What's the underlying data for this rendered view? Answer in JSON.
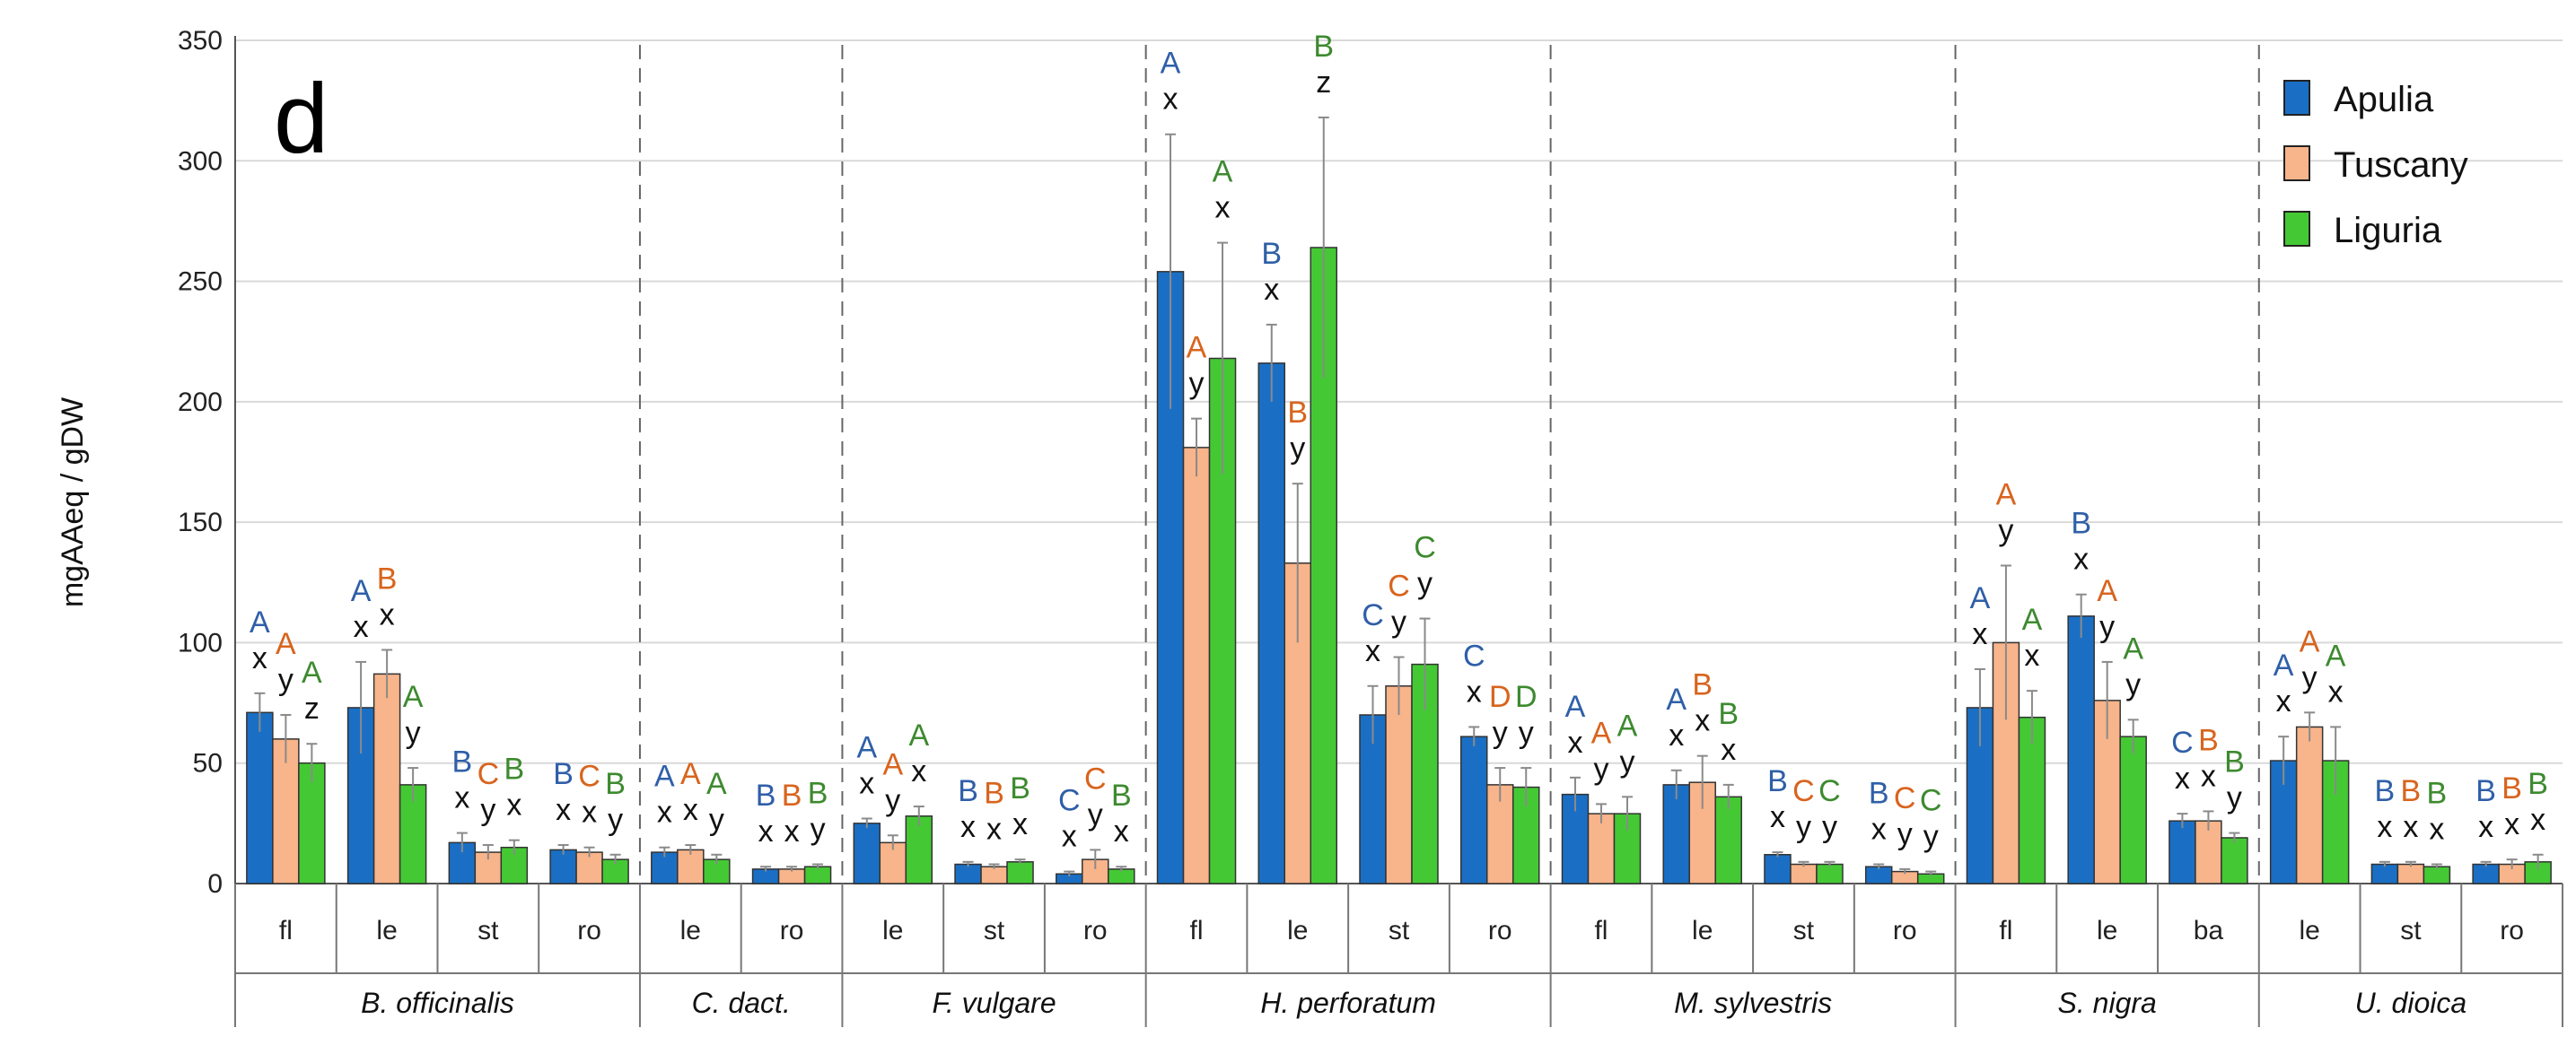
{
  "chart_data": {
    "type": "bar",
    "panel_letter": "d",
    "ylabel": "mgAAeq / gDW",
    "xlabel": "",
    "ylim": [
      0,
      350
    ],
    "yticks": [
      "0",
      "50",
      "100",
      "150",
      "200",
      "250",
      "300",
      "350"
    ],
    "grid": true,
    "legend_position": "top-right",
    "series": [
      {
        "name": "Apulia",
        "color": "#1a6fc4",
        "sig_color": "#2f5fa8"
      },
      {
        "name": "Tuscany",
        "color": "#f8b48a",
        "sig_color": "#d8641e"
      },
      {
        "name": "Liguria",
        "color": "#44c934",
        "sig_color": "#3d8a2f"
      }
    ],
    "groups": [
      {
        "species": "B. officinalis",
        "parts": [
          {
            "part": "fl",
            "bars": [
              {
                "v": 71,
                "err": 8,
                "L": "A",
                "l": "x"
              },
              {
                "v": 60,
                "err": 10,
                "L": "A",
                "l": "y"
              },
              {
                "v": 50,
                "err": 8,
                "L": "A",
                "l": "z"
              }
            ]
          },
          {
            "part": "le",
            "bars": [
              {
                "v": 73,
                "err": 19,
                "L": "A",
                "l": "x"
              },
              {
                "v": 87,
                "err": 10,
                "L": "B",
                "l": "x"
              },
              {
                "v": 41,
                "err": 7,
                "L": "A",
                "l": "y"
              }
            ]
          },
          {
            "part": "st",
            "bars": [
              {
                "v": 17,
                "err": 4,
                "L": "B",
                "l": "x"
              },
              {
                "v": 13,
                "err": 3,
                "L": "C",
                "l": "y"
              },
              {
                "v": 15,
                "err": 3,
                "L": "B",
                "l": "x"
              }
            ]
          },
          {
            "part": "ro",
            "bars": [
              {
                "v": 14,
                "err": 2,
                "L": "B",
                "l": "x"
              },
              {
                "v": 13,
                "err": 2,
                "L": "C",
                "l": "x"
              },
              {
                "v": 10,
                "err": 2,
                "L": "B",
                "l": "y"
              }
            ]
          }
        ]
      },
      {
        "species": "C. dact.",
        "parts": [
          {
            "part": "le",
            "bars": [
              {
                "v": 13,
                "err": 2,
                "L": "A",
                "l": "x"
              },
              {
                "v": 14,
                "err": 2,
                "L": "A",
                "l": "x"
              },
              {
                "v": 10,
                "err": 2,
                "L": "A",
                "l": "y"
              }
            ]
          },
          {
            "part": "ro",
            "bars": [
              {
                "v": 6,
                "err": 1,
                "L": "B",
                "l": "x"
              },
              {
                "v": 6,
                "err": 1,
                "L": "B",
                "l": "x"
              },
              {
                "v": 7,
                "err": 1,
                "L": "B",
                "l": "y"
              }
            ]
          }
        ]
      },
      {
        "species": "F. vulgare",
        "parts": [
          {
            "part": "le",
            "bars": [
              {
                "v": 25,
                "err": 2,
                "L": "A",
                "l": "x"
              },
              {
                "v": 17,
                "err": 3,
                "L": "A",
                "l": "y"
              },
              {
                "v": 28,
                "err": 4,
                "L": "A",
                "l": "x"
              }
            ]
          },
          {
            "part": "st",
            "bars": [
              {
                "v": 8,
                "err": 1,
                "L": "B",
                "l": "x"
              },
              {
                "v": 7,
                "err": 1,
                "L": "B",
                "l": "x"
              },
              {
                "v": 9,
                "err": 1,
                "L": "B",
                "l": "x"
              }
            ]
          },
          {
            "part": "ro",
            "bars": [
              {
                "v": 4,
                "err": 1,
                "L": "C",
                "l": "x"
              },
              {
                "v": 10,
                "err": 4,
                "L": "C",
                "l": "y"
              },
              {
                "v": 6,
                "err": 1,
                "L": "B",
                "l": "x"
              }
            ]
          }
        ]
      },
      {
        "species": "H. perforatum",
        "parts": [
          {
            "part": "fl",
            "bars": [
              {
                "v": 254,
                "err": 57,
                "L": "A",
                "l": "x"
              },
              {
                "v": 181,
                "err": 12,
                "L": "A",
                "l": "y"
              },
              {
                "v": 218,
                "err": 48,
                "L": "A",
                "l": "x"
              }
            ]
          },
          {
            "part": "le",
            "bars": [
              {
                "v": 216,
                "err": 16,
                "L": "B",
                "l": "x"
              },
              {
                "v": 133,
                "err": 33,
                "L": "B",
                "l": "y"
              },
              {
                "v": 264,
                "err": 54,
                "L": "B",
                "l": "z"
              }
            ]
          },
          {
            "part": "st",
            "bars": [
              {
                "v": 70,
                "err": 12,
                "L": "C",
                "l": "x"
              },
              {
                "v": 82,
                "err": 12,
                "L": "C",
                "l": "y"
              },
              {
                "v": 91,
                "err": 19,
                "L": "C",
                "l": "y"
              }
            ]
          },
          {
            "part": "ro",
            "bars": [
              {
                "v": 61,
                "err": 4,
                "L": "C",
                "l": "x"
              },
              {
                "v": 41,
                "err": 7,
                "L": "D",
                "l": "y"
              },
              {
                "v": 40,
                "err": 8,
                "L": "D",
                "l": "y"
              }
            ]
          }
        ]
      },
      {
        "species": "M. sylvestris",
        "parts": [
          {
            "part": "fl",
            "bars": [
              {
                "v": 37,
                "err": 7,
                "L": "A",
                "l": "x"
              },
              {
                "v": 29,
                "err": 4,
                "L": "A",
                "l": "y"
              },
              {
                "v": 29,
                "err": 7,
                "L": "A",
                "l": "y"
              }
            ]
          },
          {
            "part": "le",
            "bars": [
              {
                "v": 41,
                "err": 6,
                "L": "A",
                "l": "x"
              },
              {
                "v": 42,
                "err": 11,
                "L": "B",
                "l": "x"
              },
              {
                "v": 36,
                "err": 5,
                "L": "B",
                "l": "x"
              }
            ]
          },
          {
            "part": "st",
            "bars": [
              {
                "v": 12,
                "err": 1,
                "L": "B",
                "l": "x"
              },
              {
                "v": 8,
                "err": 1,
                "L": "C",
                "l": "y"
              },
              {
                "v": 8,
                "err": 1,
                "L": "C",
                "l": "y"
              }
            ]
          },
          {
            "part": "ro",
            "bars": [
              {
                "v": 7,
                "err": 1,
                "L": "B",
                "l": "x"
              },
              {
                "v": 5,
                "err": 1,
                "L": "C",
                "l": "y"
              },
              {
                "v": 4,
                "err": 1,
                "L": "C",
                "l": "y"
              }
            ]
          }
        ]
      },
      {
        "species": "S. nigra",
        "parts": [
          {
            "part": "fl",
            "bars": [
              {
                "v": 73,
                "err": 16,
                "L": "A",
                "l": "x"
              },
              {
                "v": 100,
                "err": 32,
                "L": "A",
                "l": "y"
              },
              {
                "v": 69,
                "err": 11,
                "L": "A",
                "l": "x"
              }
            ]
          },
          {
            "part": "le",
            "bars": [
              {
                "v": 111,
                "err": 9,
                "L": "B",
                "l": "x"
              },
              {
                "v": 76,
                "err": 16,
                "L": "A",
                "l": "y"
              },
              {
                "v": 61,
                "err": 7,
                "L": "A",
                "l": "y"
              }
            ]
          },
          {
            "part": "ba",
            "bars": [
              {
                "v": 26,
                "err": 3,
                "L": "C",
                "l": "x"
              },
              {
                "v": 26,
                "err": 4,
                "L": "B",
                "l": "x"
              },
              {
                "v": 19,
                "err": 2,
                "L": "B",
                "l": "y"
              }
            ]
          }
        ]
      },
      {
        "species": "U. dioica",
        "parts": [
          {
            "part": "le",
            "bars": [
              {
                "v": 51,
                "err": 10,
                "L": "A",
                "l": "x"
              },
              {
                "v": 65,
                "err": 6,
                "L": "A",
                "l": "y"
              },
              {
                "v": 51,
                "err": 14,
                "L": "A",
                "l": "x"
              }
            ]
          },
          {
            "part": "st",
            "bars": [
              {
                "v": 8,
                "err": 1,
                "L": "B",
                "l": "x"
              },
              {
                "v": 8,
                "err": 1,
                "L": "B",
                "l": "x"
              },
              {
                "v": 7,
                "err": 1,
                "L": "B",
                "l": "x"
              }
            ]
          },
          {
            "part": "ro",
            "bars": [
              {
                "v": 8,
                "err": 1,
                "L": "B",
                "l": "x"
              },
              {
                "v": 8,
                "err": 2,
                "L": "B",
                "l": "x"
              },
              {
                "v": 9,
                "err": 3,
                "L": "B",
                "l": "x"
              }
            ]
          }
        ]
      }
    ]
  }
}
